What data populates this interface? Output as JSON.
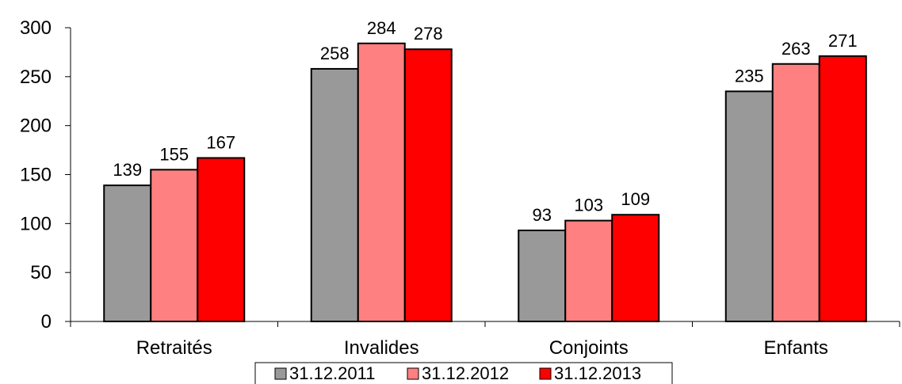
{
  "chart_data": {
    "type": "bar",
    "title": "",
    "xlabel": "",
    "ylabel": "",
    "categories": [
      "Retraités",
      "Invalides",
      "Conjoints",
      "Enfants"
    ],
    "series": [
      {
        "name": "31.12.2011",
        "color": "#999999",
        "values": [
          139,
          258,
          93,
          235
        ]
      },
      {
        "name": "31.12.2012",
        "color": "#FF8080",
        "values": [
          155,
          284,
          103,
          263
        ]
      },
      {
        "name": "31.12.2013",
        "color": "#FF0000",
        "values": [
          167,
          278,
          109,
          271
        ]
      }
    ],
    "ylim": [
      0,
      300
    ],
    "yticks": [
      0,
      50,
      100,
      150,
      200,
      250,
      300
    ],
    "grid": false,
    "legend": "bottom",
    "data_labels": true
  }
}
